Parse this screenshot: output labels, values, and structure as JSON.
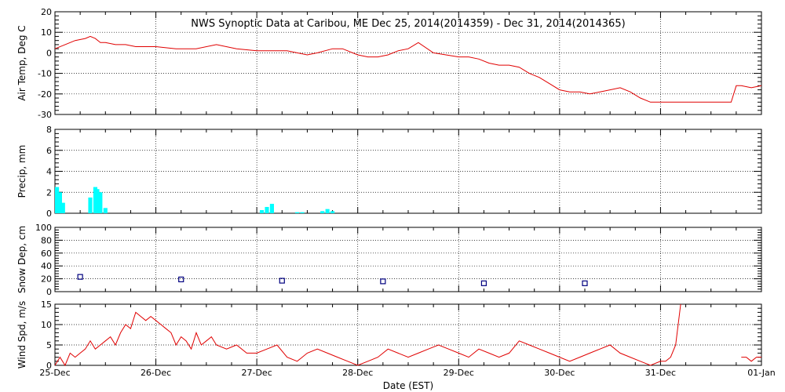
{
  "chart_data": [
    {
      "type": "line",
      "title": "NWS Synoptic Data at Caribou, ME    Dec 25, 2014(2014359) - Dec 31, 2014(2014365)",
      "ylabel": "Air Temp, Deg C",
      "ylim": [
        -30,
        20
      ],
      "yticks": [
        -30,
        -20,
        -10,
        0,
        10,
        20
      ],
      "ytick_labels": [
        "-30",
        "-20",
        "-10",
        "0",
        "10",
        "20"
      ],
      "grid": true,
      "color": "#e00000",
      "series": [
        {
          "x": [
            0,
            0.1,
            0.2,
            0.3,
            0.35,
            0.4,
            0.45,
            0.5,
            0.6,
            0.7,
            0.8,
            0.9,
            1.0,
            1.2,
            1.4,
            1.6,
            1.8,
            2.0,
            2.1,
            2.2,
            2.3,
            2.4,
            2.5,
            2.6,
            2.75,
            2.85,
            3.0,
            3.1,
            3.2,
            3.3,
            3.4,
            3.5,
            3.6,
            3.75,
            4.0,
            4.1,
            4.2,
            4.3,
            4.4,
            4.5,
            4.6,
            4.7,
            4.8,
            4.9,
            5.0,
            5.1,
            5.2,
            5.3,
            5.4,
            5.5,
            5.6,
            5.7,
            5.8,
            5.9,
            6.0,
            6.2,
            6.4,
            6.6,
            6.7,
            6.75,
            6.8,
            6.9,
            7.0
          ],
          "y": [
            2,
            4,
            6,
            7,
            8,
            7,
            5,
            5,
            4,
            4,
            3,
            3,
            3,
            2,
            2,
            4,
            2,
            1,
            1,
            1,
            1,
            0,
            -1,
            0,
            2,
            2,
            -1,
            -2,
            -2,
            -1,
            1,
            2,
            5,
            0,
            -2,
            -2,
            -3,
            -5,
            -6,
            -6,
            -7,
            -10,
            -12,
            -15,
            -18,
            -19,
            -19,
            -20,
            -19,
            -18,
            -17,
            -19,
            -22,
            -24,
            -24,
            -24,
            -24,
            -24,
            -24,
            -16,
            -16,
            -17,
            -16
          ]
        }
      ]
    },
    {
      "type": "bar",
      "ylabel": "Precip, mm",
      "ylim": [
        0,
        8
      ],
      "yticks": [
        0,
        2,
        4,
        6,
        8
      ],
      "ytick_labels": [
        "0",
        "2",
        "4",
        "6",
        "8"
      ],
      "grid": true,
      "color": "#00ffff",
      "x": [
        0.02,
        0.05,
        0.08,
        0.35,
        0.4,
        0.42,
        0.45,
        0.5,
        2.05,
        2.1,
        2.15,
        2.4,
        2.45,
        2.65,
        2.7,
        2.75
      ],
      "values": [
        2.5,
        2.0,
        1.0,
        1.5,
        2.5,
        2.3,
        2.0,
        0.5,
        0.3,
        0.6,
        0.9,
        0.1,
        0.1,
        0.2,
        0.4,
        0.2
      ],
      "bar_width_days": 0.04
    },
    {
      "type": "scatter",
      "ylabel": "Snow Dep, cm",
      "ylim": [
        0,
        100
      ],
      "yticks": [
        0,
        20,
        40,
        60,
        80,
        100
      ],
      "ytick_labels": [
        "0",
        "20",
        "40",
        "60",
        "80",
        "100"
      ],
      "grid": true,
      "color": "#000080",
      "x": [
        0.25,
        1.25,
        2.25,
        3.25,
        4.25,
        5.25
      ],
      "values": [
        23,
        19,
        17,
        16,
        13,
        13
      ]
    },
    {
      "type": "line",
      "ylabel": "Wind Spd, m/s",
      "ylim": [
        0,
        15
      ],
      "yticks": [
        0,
        5,
        10,
        15
      ],
      "ytick_labels": [
        "0",
        "5",
        "10",
        "15"
      ],
      "grid": true,
      "color": "#e00000",
      "xlabel": "Date (EST)",
      "x_ticks": [
        0,
        1,
        2,
        3,
        4,
        5,
        6,
        7
      ],
      "x_tick_labels": [
        "25-Dec",
        "26-Dec",
        "27-Dec",
        "28-Dec",
        "29-Dec",
        "30-Dec",
        "31-Dec",
        "01-Jan"
      ],
      "series": [
        {
          "x": [
            0,
            0.05,
            0.1,
            0.15,
            0.2,
            0.25,
            0.3,
            0.35,
            0.4,
            0.45,
            0.5,
            0.55,
            0.6,
            0.65,
            0.7,
            0.75,
            0.8,
            0.85,
            0.9,
            0.95,
            1.0,
            1.05,
            1.1,
            1.15,
            1.2,
            1.25,
            1.3,
            1.35,
            1.4,
            1.45,
            1.5,
            1.55,
            1.6,
            1.7,
            1.8,
            1.9,
            2.0,
            2.1,
            2.2,
            2.3,
            2.4,
            2.5,
            2.6,
            2.7,
            2.8,
            2.9,
            3.0,
            3.1,
            3.2,
            3.3,
            3.4,
            3.5,
            3.6,
            3.7,
            3.8,
            3.9,
            4.0,
            4.1,
            4.2,
            4.3,
            4.4,
            4.5,
            4.6,
            4.7,
            4.8,
            4.9,
            5.0,
            5.1,
            5.2,
            5.3,
            5.4,
            5.5,
            5.6,
            5.7,
            5.8,
            5.9,
            6.0,
            6.05,
            6.1,
            6.15,
            6.2
          ],
          "y": [
            0,
            2,
            0,
            3,
            2,
            3,
            4,
            6,
            4,
            5,
            6,
            7,
            5,
            8,
            10,
            9,
            13,
            12,
            11,
            12,
            11,
            10,
            9,
            8,
            5,
            7,
            6,
            4,
            8,
            5,
            6,
            7,
            5,
            4,
            5,
            3,
            3,
            4,
            5,
            2,
            1,
            3,
            4,
            3,
            2,
            1,
            0,
            1,
            2,
            4,
            3,
            2,
            3,
            4,
            5,
            4,
            3,
            2,
            4,
            3,
            2,
            3,
            6,
            5,
            4,
            3,
            2,
            1,
            2,
            3,
            4,
            5,
            3,
            2,
            1,
            0,
            1,
            1,
            2,
            5,
            15
          ]
        },
        {
          "x": [
            6.8,
            6.85,
            6.9,
            6.95,
            7.0
          ],
          "y": [
            2,
            2,
            1,
            2,
            2
          ]
        }
      ]
    }
  ]
}
